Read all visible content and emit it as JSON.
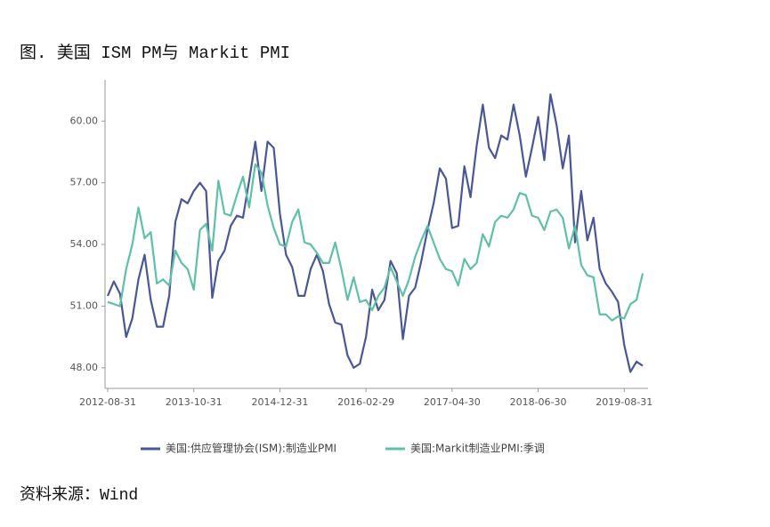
{
  "chart_data": {
    "type": "line",
    "title": "图. 美国 ISM PM与 Markit PMI",
    "source": "资料来源：Wind",
    "categories": [
      "2012-08-31",
      null,
      null,
      null,
      null,
      null,
      null,
      null,
      null,
      null,
      null,
      null,
      null,
      null,
      "2013-10-31",
      null,
      null,
      null,
      null,
      null,
      null,
      null,
      null,
      null,
      null,
      null,
      null,
      null,
      "2014-12-31",
      null,
      null,
      null,
      null,
      null,
      null,
      null,
      null,
      null,
      null,
      null,
      null,
      null,
      "2016-02-29",
      null,
      null,
      null,
      null,
      null,
      null,
      null,
      null,
      null,
      null,
      null,
      null,
      null,
      "2017-04-30",
      null,
      null,
      null,
      null,
      null,
      null,
      null,
      null,
      null,
      null,
      null,
      null,
      null,
      "2018-06-30",
      null,
      null,
      null,
      null,
      null,
      null,
      null,
      null,
      null,
      null,
      null,
      null,
      null,
      "2019-08-31",
      null,
      null,
      null
    ],
    "series": [
      {
        "name": "美国:供应管理协会(ISM):制造业PMI",
        "color": "#4a5796",
        "values": [
          51.5,
          52.2,
          51.6,
          49.5,
          50.4,
          52.3,
          53.5,
          51.3,
          50.0,
          50.0,
          51.5,
          55.1,
          56.2,
          56.0,
          56.6,
          57.0,
          56.6,
          51.4,
          53.2,
          53.7,
          54.9,
          55.4,
          55.3,
          57.1,
          59.0,
          56.6,
          59.0,
          58.7,
          55.5,
          53.5,
          52.9,
          51.5,
          51.5,
          52.8,
          53.5,
          52.7,
          51.1,
          50.2,
          50.1,
          48.6,
          48.0,
          48.2,
          49.5,
          51.8,
          50.8,
          51.3,
          53.2,
          52.6,
          49.4,
          51.5,
          51.9,
          53.2,
          54.7,
          56.0,
          57.7,
          57.2,
          54.8,
          54.9,
          57.8,
          56.3,
          58.8,
          60.8,
          58.7,
          58.2,
          59.3,
          59.1,
          60.8,
          59.3,
          57.3,
          58.7,
          60.2,
          58.1,
          61.3,
          59.8,
          57.7,
          59.3,
          54.1,
          56.6,
          54.2,
          55.3,
          52.8,
          52.1,
          51.7,
          51.2,
          49.1,
          47.8,
          48.3,
          48.1
        ]
      },
      {
        "name": "美国:Markit制造业PMI:季调",
        "color": "#5fc0a8",
        "values": [
          51.2,
          51.1,
          51.0,
          52.8,
          54.0,
          55.8,
          54.3,
          54.6,
          52.1,
          52.3,
          52.0,
          53.7,
          53.1,
          52.8,
          51.8,
          54.7,
          55.0,
          53.7,
          57.1,
          55.5,
          55.4,
          56.4,
          57.3,
          55.8,
          57.9,
          57.5,
          55.9,
          54.8,
          54.0,
          53.9,
          55.1,
          55.7,
          54.1,
          54.0,
          53.6,
          53.1,
          53.1,
          54.1,
          52.8,
          51.3,
          52.4,
          51.2,
          51.3,
          50.8,
          51.5,
          51.9,
          52.9,
          52.2,
          51.5,
          52.3,
          53.4,
          54.2,
          54.9,
          54.1,
          53.3,
          52.8,
          52.7,
          52.0,
          53.3,
          52.8,
          53.1,
          54.5,
          53.9,
          55.1,
          55.4,
          55.3,
          55.7,
          56.5,
          56.4,
          55.4,
          55.3,
          54.7,
          55.6,
          55.7,
          55.3,
          53.8,
          54.9,
          53.0,
          52.5,
          52.4,
          50.6,
          50.6,
          50.3,
          50.5,
          50.4,
          51.1,
          51.3,
          52.6
        ]
      }
    ],
    "ylim": [
      47,
      62
    ],
    "yticks": [
      {
        "value": 48,
        "label": "48.00"
      },
      {
        "value": 51,
        "label": "51.00"
      },
      {
        "value": 54,
        "label": "54.00"
      },
      {
        "value": 57,
        "label": "57.00"
      },
      {
        "value": 60,
        "label": "60.00"
      }
    ]
  }
}
